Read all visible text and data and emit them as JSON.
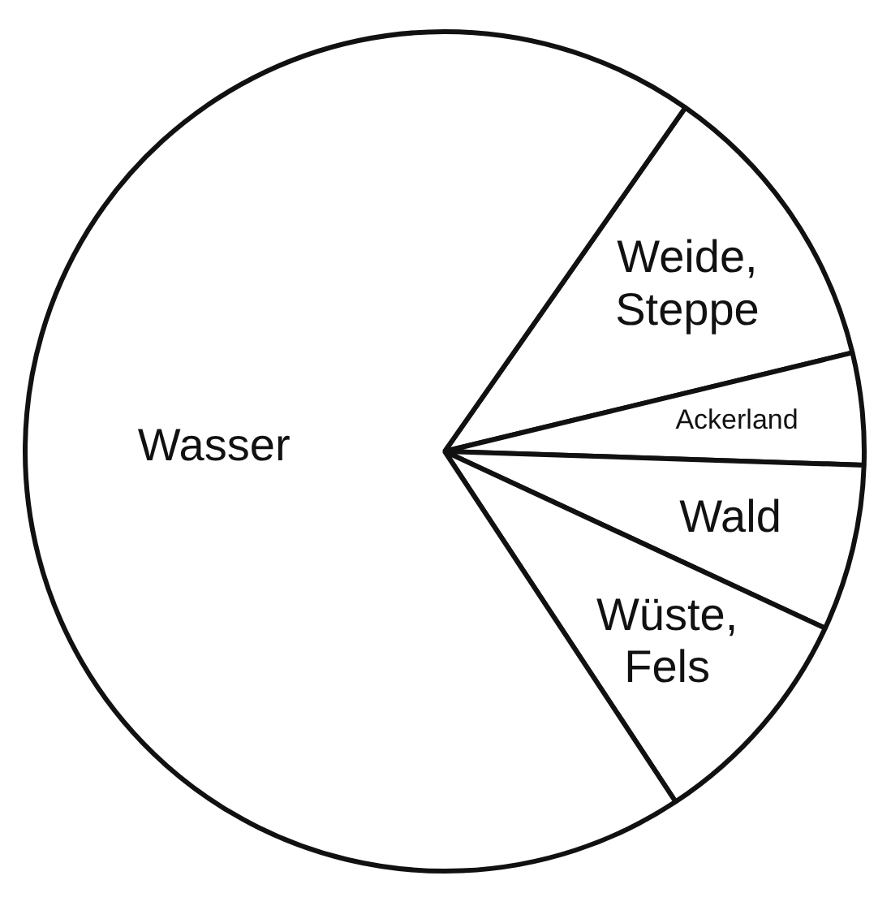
{
  "chart_data": {
    "type": "pie",
    "categories": [
      "Weide, Steppe",
      "Ackerland",
      "Wald",
      "Wüste, Fels",
      "Wasser"
    ],
    "values": [
      11.5,
      4.3,
      6.4,
      8.8,
      69
    ],
    "colors": [
      "#ffffff",
      "#ffffff",
      "#ffffff",
      "#ffffff",
      "#ffffff"
    ],
    "legend": false
  }
}
